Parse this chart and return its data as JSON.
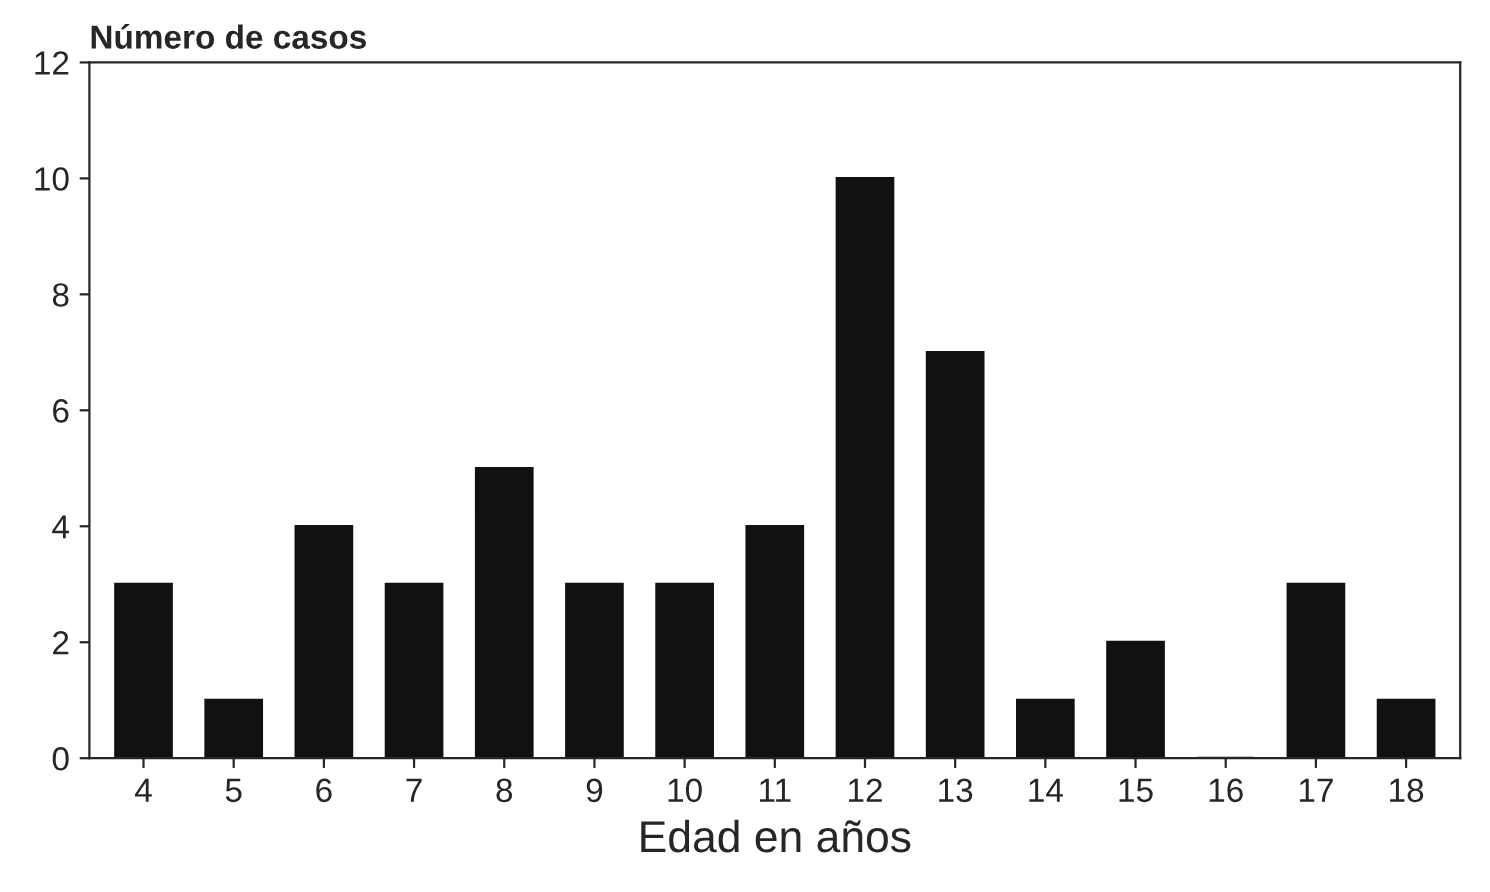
{
  "chart_data": {
    "type": "bar",
    "ylabel": "Número de casos",
    "xlabel": "Edad en años",
    "categories": [
      "4",
      "5",
      "6",
      "7",
      "8",
      "9",
      "10",
      "11",
      "12",
      "13",
      "14",
      "15",
      "16",
      "17",
      "18"
    ],
    "values": [
      3,
      1,
      4,
      3,
      5,
      3,
      3,
      4,
      10,
      7,
      1,
      2,
      0,
      3,
      1
    ],
    "color": "#111111",
    "ylim": [
      0,
      12
    ],
    "yticks": [
      0,
      2,
      4,
      6,
      8,
      10,
      12
    ]
  }
}
